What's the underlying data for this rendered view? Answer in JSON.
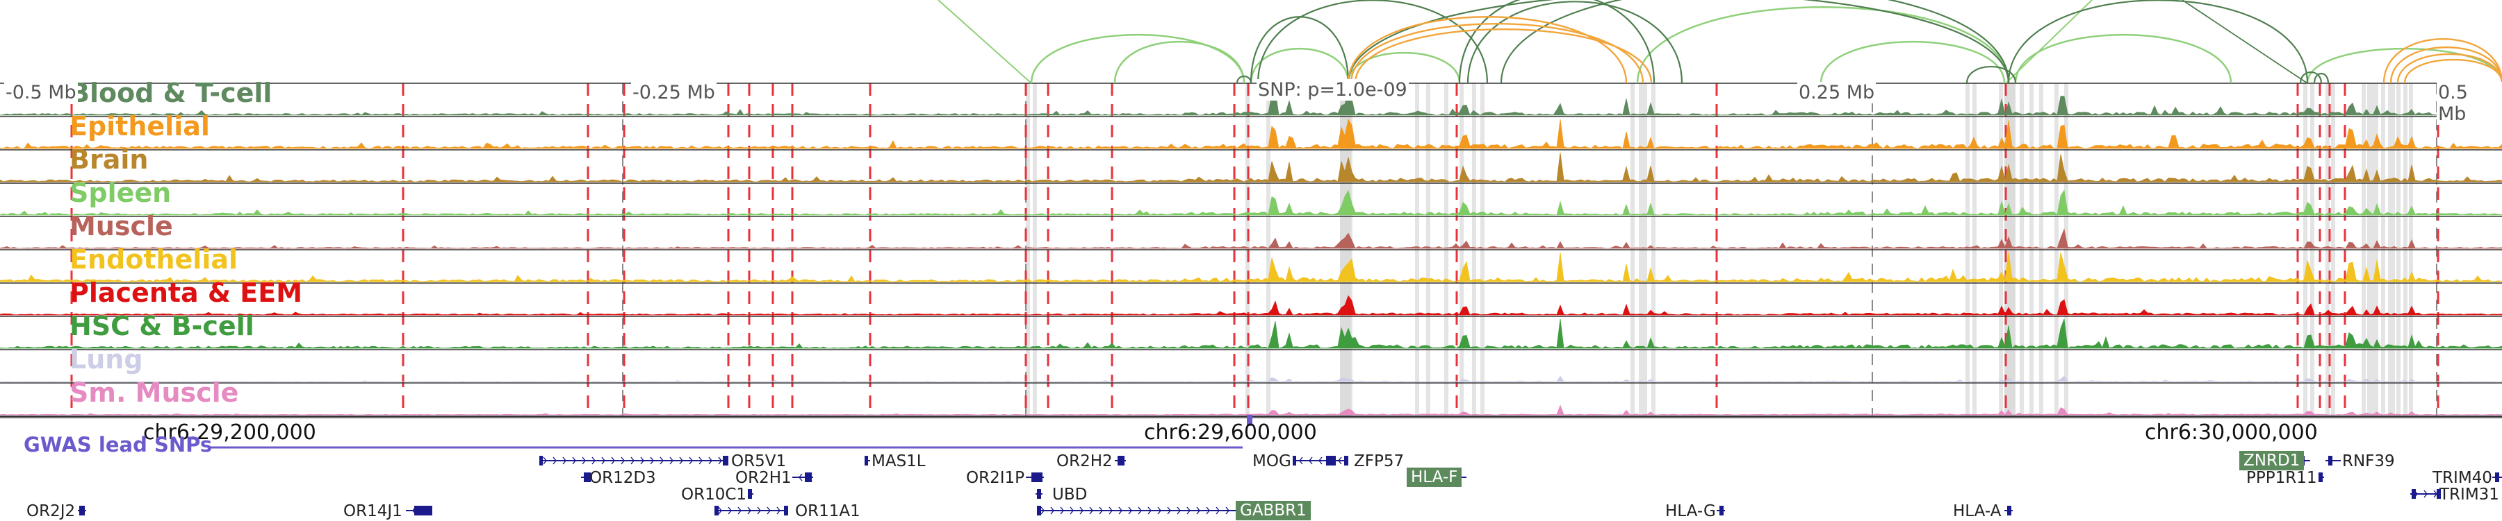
{
  "tracks": [
    {
      "label": "Blood & T-cell",
      "color": "#5f8a5f"
    },
    {
      "label": "Epithelial",
      "color": "#f39a1e"
    },
    {
      "label": "Brain",
      "color": "#b8862b"
    },
    {
      "label": "Spleen",
      "color": "#7fcc66"
    },
    {
      "label": "Muscle",
      "color": "#b8625c"
    },
    {
      "label": "Endothelial",
      "color": "#f2c21f"
    },
    {
      "label": "Placenta & EEM",
      "color": "#dd1111"
    },
    {
      "label": "HSC & B-cell",
      "color": "#3f9c3f"
    },
    {
      "label": "Lung",
      "color": "#cccde6"
    },
    {
      "label": "Sm. Muscle",
      "color": "#e68ac2"
    }
  ],
  "distance_labels": [
    "-0.5 Mb",
    "-0.25 Mb",
    "0.25 Mb",
    "0.5 Mb"
  ],
  "snp_label": "SNP: p=1.0e-09",
  "coordinates": [
    "chr6:29,200,000",
    "chr6:29,600,000",
    "chr6:30,000,000"
  ],
  "gwas_label": "GWAS lead SNPs",
  "genes": [
    {
      "name": "OR5V1"
    },
    {
      "name": "MAS1L"
    },
    {
      "name": "OR2H2"
    },
    {
      "name": "MOG"
    },
    {
      "name": "ZFP57"
    },
    {
      "name": "OR12D3"
    },
    {
      "name": "OR2H1"
    },
    {
      "name": "OR2I1P"
    },
    {
      "name": "HLA-F",
      "highlight": true
    },
    {
      "name": "OR10C1"
    },
    {
      "name": "UBD"
    },
    {
      "name": "OR2J2"
    },
    {
      "name": "OR14J1"
    },
    {
      "name": "OR11A1"
    },
    {
      "name": "GABBR1",
      "highlight": true
    },
    {
      "name": "HLA-G"
    },
    {
      "name": "HLA-A"
    },
    {
      "name": "ZNRD1",
      "highlight": true
    },
    {
      "name": "RNF39"
    },
    {
      "name": "PPP1R11"
    },
    {
      "name": "TRIM40"
    },
    {
      "name": "TRIM31"
    }
  ],
  "colors": {
    "boundary_line": "#e8323c",
    "gwas_line": "#6a5acd",
    "gene_feature": "#1a1a8c",
    "loop_strong": "#4f7f4f",
    "loop_light": "#8fd07a",
    "loop_orange": "#f2a53a"
  }
}
